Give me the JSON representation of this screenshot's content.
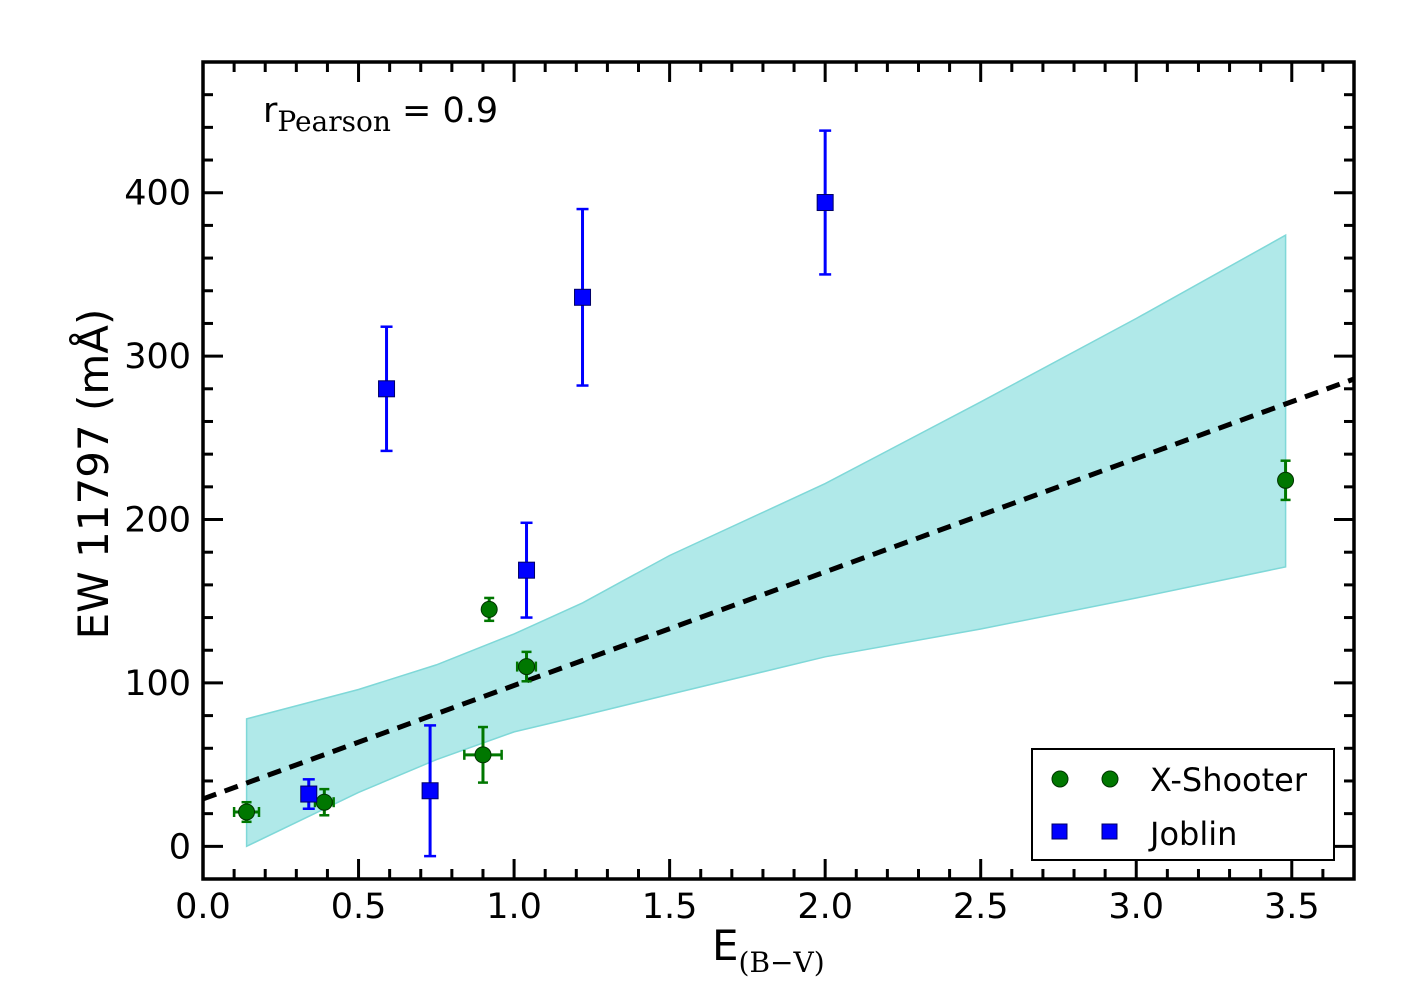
{
  "chart_data": {
    "type": "scatter",
    "xlabel": {
      "main": "E",
      "sub": "(B−V)"
    },
    "ylabel": "EW 11797 (mÅ)",
    "xlim": [
      0.0,
      3.7
    ],
    "ylim": [
      -20,
      480
    ],
    "x_ticks": [
      0.0,
      0.5,
      1.0,
      1.5,
      2.0,
      2.5,
      3.0,
      3.5
    ],
    "x_tick_labels": [
      "0.0",
      "0.5",
      "1.0",
      "1.5",
      "2.0",
      "2.5",
      "3.0",
      "3.5"
    ],
    "y_ticks": [
      0,
      100,
      200,
      300,
      400
    ],
    "y_tick_labels": [
      "0",
      "100",
      "200",
      "300",
      "400"
    ],
    "annotation": {
      "main": "r",
      "sub": "Pearson",
      "suffix": " = 0.9"
    },
    "fit_line": {
      "style": "dashed",
      "color": "#000000",
      "x": [
        0.0,
        3.7
      ],
      "y": [
        29,
        286
      ]
    },
    "band": {
      "color": "#b0e9e9",
      "edge_color": "#7fd8d8",
      "x": [
        0.14,
        0.5,
        0.75,
        1.0,
        1.22,
        1.5,
        2.0,
        2.5,
        3.0,
        3.48
      ],
      "upper": [
        78,
        96,
        111,
        130,
        149,
        178,
        222,
        272,
        323,
        374
      ],
      "lower": [
        0,
        33,
        53,
        70,
        80,
        93,
        116,
        133,
        152,
        171
      ]
    },
    "series": [
      {
        "name": "X-Shooter",
        "marker": "circle",
        "color": "#007700",
        "points": [
          {
            "x": 0.14,
            "y": 21,
            "xerr": 0.04,
            "yerr": 6
          },
          {
            "x": 0.39,
            "y": 27,
            "xerr": 0.03,
            "yerr": 8
          },
          {
            "x": 0.9,
            "y": 56,
            "xerr": 0.06,
            "yerr": 17
          },
          {
            "x": 0.92,
            "y": 145,
            "xerr": 0.0,
            "yerr": 7
          },
          {
            "x": 1.04,
            "y": 110,
            "xerr": 0.03,
            "yerr": 9
          },
          {
            "x": 3.48,
            "y": 224,
            "xerr": 0.0,
            "yerr": 12
          }
        ]
      },
      {
        "name": "Joblin",
        "marker": "square",
        "color": "#0000ff",
        "points": [
          {
            "x": 0.34,
            "y": 32,
            "xerr": 0.02,
            "yerr": 9
          },
          {
            "x": 0.59,
            "y": 280,
            "xerr": 0.02,
            "yerr": 38
          },
          {
            "x": 0.73,
            "y": 34,
            "xerr": 0.0,
            "yerr": 40
          },
          {
            "x": 1.04,
            "y": 169,
            "xerr": 0.02,
            "yerr": 29
          },
          {
            "x": 1.22,
            "y": 336,
            "xerr": 0.02,
            "yerr": 54
          },
          {
            "x": 2.0,
            "y": 394,
            "xerr": 0.02,
            "yerr": 44
          }
        ]
      }
    ],
    "legend": {
      "position": "lower-right",
      "entries": [
        "X-Shooter",
        "Joblin"
      ]
    }
  }
}
